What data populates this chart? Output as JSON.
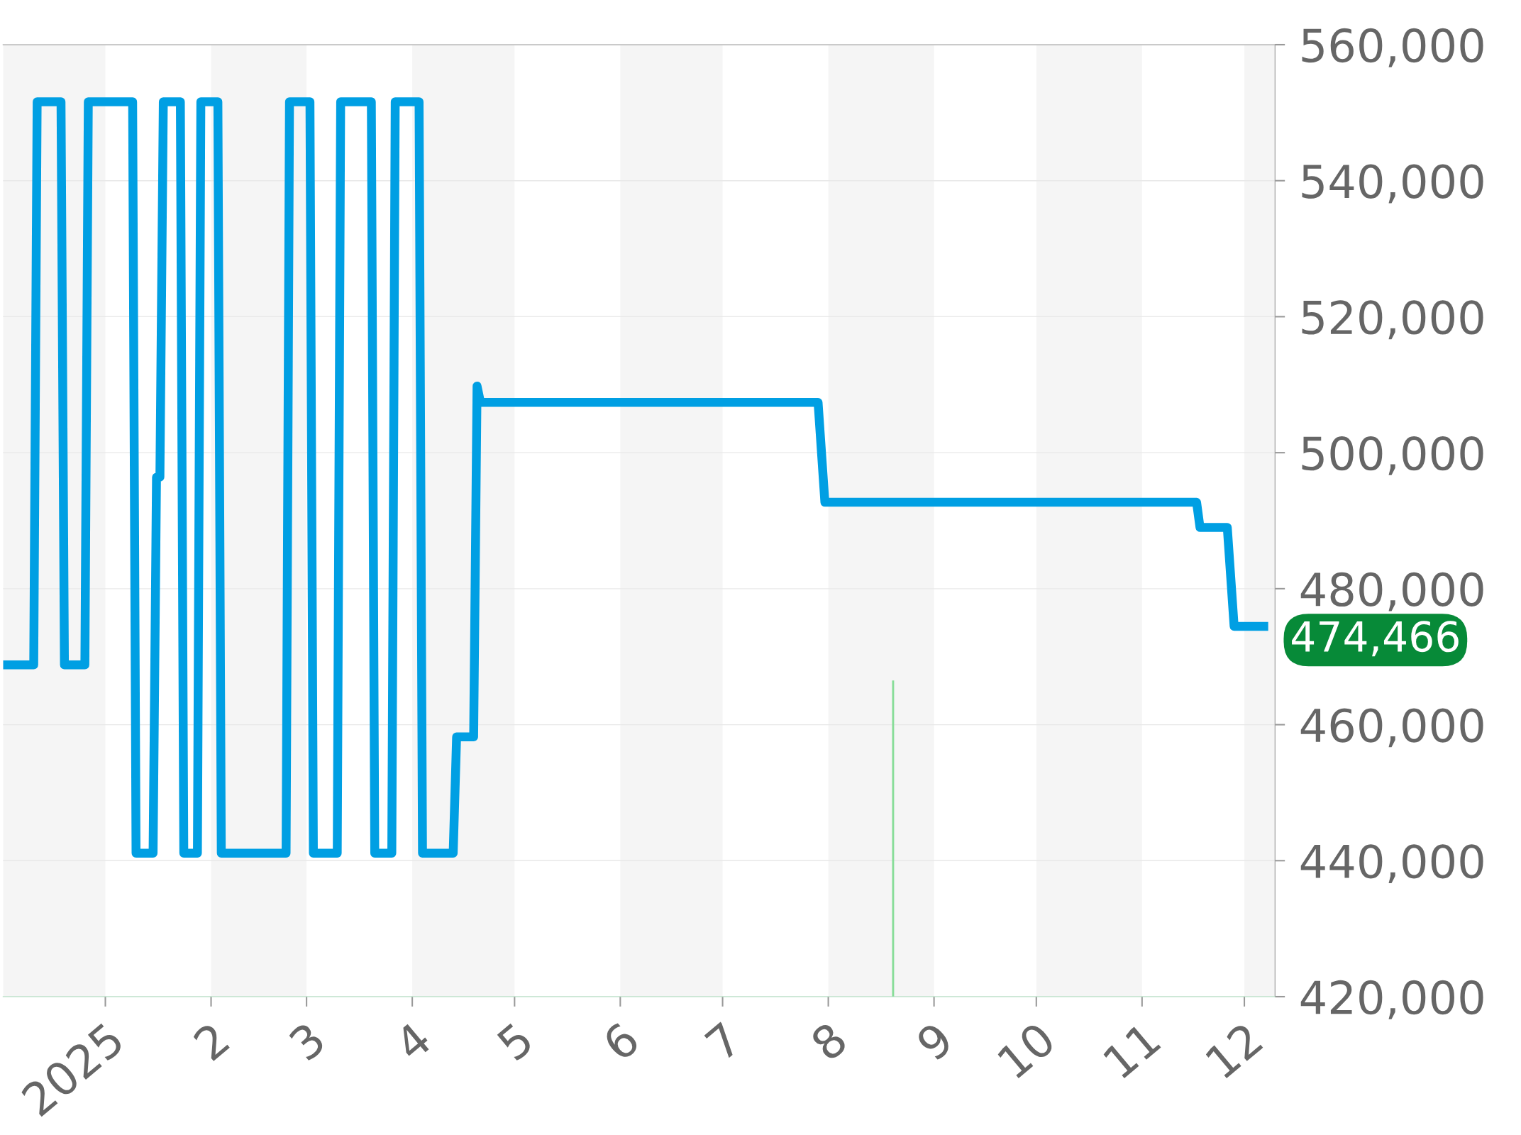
{
  "chart_data": {
    "type": "line",
    "series": [
      {
        "color": "#009fe3",
        "x": [
          "2024-12-02",
          "2024-12-11",
          "2024-12-12",
          "2024-12-19",
          "2024-12-20",
          "2024-12-26",
          "2024-12-27",
          "2025-01-09",
          "2025-01-10",
          "2025-01-15",
          "2025-01-16",
          "2025-01-17",
          "2025-01-18",
          "2025-01-23",
          "2025-01-24",
          "2025-01-28",
          "2025-01-29",
          "2025-02-03",
          "2025-02-04",
          "2025-02-23",
          "2025-02-24",
          "2025-03-02",
          "2025-03-03",
          "2025-03-10",
          "2025-03-11",
          "2025-03-20",
          "2025-03-21",
          "2025-03-26",
          "2025-03-27",
          "2025-04-03",
          "2025-04-04",
          "2025-04-13",
          "2025-04-14",
          "2025-04-19",
          "2025-04-20",
          "2025-04-21",
          "2025-07-29",
          "2025-07-31",
          "2025-11-17",
          "2025-11-18",
          "2025-11-26",
          "2025-11-28",
          "2025-12-08"
        ],
        "values": [
          468800,
          468800,
          551600,
          551600,
          468800,
          468800,
          551600,
          551600,
          441100,
          441100,
          496400,
          496400,
          551600,
          551600,
          441100,
          441100,
          551600,
          551600,
          441100,
          441100,
          551600,
          551600,
          441100,
          441100,
          551600,
          551600,
          441100,
          441100,
          551600,
          551600,
          441100,
          441100,
          458200,
          458200,
          509800,
          507400,
          507400,
          492700,
          492700,
          489000,
          489000,
          474466,
          474466
        ]
      },
      {
        "type": "bar",
        "color": "#88dd99",
        "x": [
          "2025-08-20"
        ],
        "values": [
          466500
        ]
      }
    ],
    "xlim": [
      "2024-12-02",
      "2025-12-10"
    ],
    "xticks": [
      {
        "value": "2025-01-01",
        "label": "2025"
      },
      {
        "value": "2025-02-01",
        "label": "2"
      },
      {
        "value": "2025-03-01",
        "label": "3"
      },
      {
        "value": "2025-04-01",
        "label": "4"
      },
      {
        "value": "2025-05-01",
        "label": "5"
      },
      {
        "value": "2025-06-01",
        "label": "6"
      },
      {
        "value": "2025-07-01",
        "label": "7"
      },
      {
        "value": "2025-08-01",
        "label": "8"
      },
      {
        "value": "2025-09-01",
        "label": "9"
      },
      {
        "value": "2025-10-01",
        "label": "10"
      },
      {
        "value": "2025-11-01",
        "label": "11"
      },
      {
        "value": "2025-12-01",
        "label": "12"
      }
    ],
    "ylim": [
      420000,
      560000
    ],
    "yticks": [
      {
        "value": 420000,
        "label": "420,000"
      },
      {
        "value": 440000,
        "label": "440,000"
      },
      {
        "value": 460000,
        "label": "460,000"
      },
      {
        "value": 480000,
        "label": "480,000"
      },
      {
        "value": 500000,
        "label": "500,000"
      },
      {
        "value": 520000,
        "label": "520,000"
      },
      {
        "value": 540000,
        "label": "540,000"
      },
      {
        "value": 560000,
        "label": "560,000"
      }
    ],
    "bands": [
      {
        "axis": "x",
        "from": "2024-12-02",
        "to": "2025-01-01",
        "color": "#f5f5f5"
      },
      {
        "axis": "x",
        "from": "2025-02-01",
        "to": "2025-03-01",
        "color": "#f5f5f5"
      },
      {
        "axis": "x",
        "from": "2025-04-01",
        "to": "2025-05-01",
        "color": "#f5f5f5"
      },
      {
        "axis": "x",
        "from": "2025-06-01",
        "to": "2025-07-01",
        "color": "#f5f5f5"
      },
      {
        "axis": "x",
        "from": "2025-08-01",
        "to": "2025-09-01",
        "color": "#f5f5f5"
      },
      {
        "axis": "x",
        "from": "2025-10-01",
        "to": "2025-11-01",
        "color": "#f5f5f5"
      },
      {
        "axis": "x",
        "from": "2025-12-01",
        "to": "2025-12-10",
        "color": "#f5f5f5"
      }
    ],
    "annotations": [
      {
        "text": "474,466",
        "x": "2025-12-08",
        "y": 474466
      }
    ],
    "grid": "y",
    "legend": false
  }
}
